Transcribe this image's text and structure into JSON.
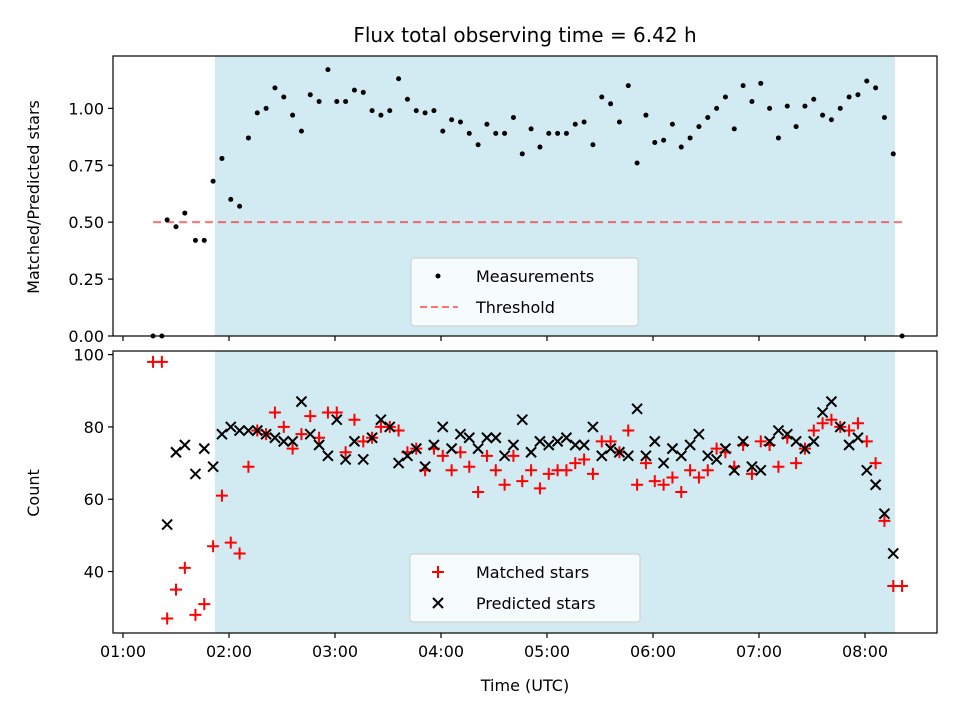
{
  "colors": {
    "shade": "#add8e6",
    "measurement": "#000000",
    "threshold": "#ff0000",
    "matched": "#ff0000",
    "predicted": "#000000"
  },
  "chart_data": [
    {
      "type": "scatter",
      "title": "Flux total observing time = 6.42 h",
      "xlabel": "",
      "ylabel": "Matched/Predicted stars",
      "ylim": [
        0.0,
        1.23
      ],
      "yticks": [
        "0.00",
        "0.25",
        "0.50",
        "0.75",
        "1.00"
      ],
      "shaded_region": {
        "x_start": "01:52",
        "x_end": "08:17"
      },
      "threshold": {
        "name": "Threshold",
        "value": 0.5,
        "x_start": "01:17",
        "x_end": "08:23"
      },
      "legend": {
        "placement": "lower center",
        "entries": [
          "Measurements",
          "Threshold"
        ]
      },
      "series": [
        {
          "name": "Measurements",
          "points": [
            [
              "01:17",
              0.0
            ],
            [
              "01:22",
              0.0
            ],
            [
              "01:25",
              0.51
            ],
            [
              "01:30",
              0.48
            ],
            [
              "01:35",
              0.54
            ],
            [
              "01:41",
              0.42
            ],
            [
              "01:46",
              0.42
            ],
            [
              "01:51",
              0.68
            ],
            [
              "01:56",
              0.78
            ],
            [
              "02:01",
              0.6
            ],
            [
              "02:06",
              0.57
            ],
            [
              "02:11",
              0.87
            ],
            [
              "02:16",
              0.98
            ],
            [
              "02:21",
              1.0
            ],
            [
              "02:26",
              1.09
            ],
            [
              "02:31",
              1.05
            ],
            [
              "02:36",
              0.97
            ],
            [
              "02:41",
              0.9
            ],
            [
              "02:46",
              1.06
            ],
            [
              "02:51",
              1.03
            ],
            [
              "02:56",
              1.17
            ],
            [
              "03:01",
              1.03
            ],
            [
              "03:06",
              1.03
            ],
            [
              "03:11",
              1.08
            ],
            [
              "03:16",
              1.07
            ],
            [
              "03:21",
              0.99
            ],
            [
              "03:26",
              0.97
            ],
            [
              "03:31",
              0.99
            ],
            [
              "03:36",
              1.13
            ],
            [
              "03:41",
              1.04
            ],
            [
              "03:46",
              0.99
            ],
            [
              "03:51",
              0.98
            ],
            [
              "03:56",
              0.99
            ],
            [
              "04:01",
              0.9
            ],
            [
              "04:06",
              0.95
            ],
            [
              "04:11",
              0.94
            ],
            [
              "04:16",
              0.89
            ],
            [
              "04:21",
              0.84
            ],
            [
              "04:26",
              0.93
            ],
            [
              "04:31",
              0.89
            ],
            [
              "04:36",
              0.89
            ],
            [
              "04:41",
              0.96
            ],
            [
              "04:46",
              0.8
            ],
            [
              "04:51",
              0.91
            ],
            [
              "04:56",
              0.83
            ],
            [
              "05:01",
              0.89
            ],
            [
              "05:06",
              0.89
            ],
            [
              "05:11",
              0.89
            ],
            [
              "05:16",
              0.93
            ],
            [
              "05:21",
              0.94
            ],
            [
              "05:26",
              0.84
            ],
            [
              "05:31",
              1.05
            ],
            [
              "05:36",
              1.02
            ],
            [
              "05:41",
              0.94
            ],
            [
              "05:46",
              1.1
            ],
            [
              "05:51",
              0.76
            ],
            [
              "05:56",
              0.97
            ],
            [
              "06:01",
              0.85
            ],
            [
              "06:06",
              0.86
            ],
            [
              "06:11",
              0.93
            ],
            [
              "06:16",
              0.83
            ],
            [
              "06:21",
              0.87
            ],
            [
              "06:26",
              0.92
            ],
            [
              "06:31",
              0.96
            ],
            [
              "06:36",
              1.0
            ],
            [
              "06:41",
              1.05
            ],
            [
              "06:46",
              0.91
            ],
            [
              "06:51",
              1.1
            ],
            [
              "06:56",
              1.03
            ],
            [
              "07:01",
              1.11
            ],
            [
              "07:06",
              1.0
            ],
            [
              "07:11",
              0.87
            ],
            [
              "07:16",
              1.01
            ],
            [
              "07:21",
              0.92
            ],
            [
              "07:26",
              1.01
            ],
            [
              "07:31",
              1.04
            ],
            [
              "07:36",
              0.97
            ],
            [
              "07:41",
              0.95
            ],
            [
              "07:46",
              1.0
            ],
            [
              "07:51",
              1.05
            ],
            [
              "07:56",
              1.06
            ],
            [
              "08:01",
              1.12
            ],
            [
              "08:06",
              1.09
            ],
            [
              "08:11",
              0.96
            ],
            [
              "08:16",
              0.8
            ],
            [
              "08:21",
              0.0
            ]
          ]
        }
      ]
    },
    {
      "type": "scatter",
      "title": "",
      "xlabel": "Time (UTC)",
      "ylabel": "Count",
      "ylim": [
        23,
        101
      ],
      "yticks": [
        "40",
        "60",
        "80",
        "100"
      ],
      "xticks": [
        "01:00",
        "02:00",
        "03:00",
        "04:00",
        "05:00",
        "06:00",
        "07:00",
        "08:00"
      ],
      "shaded_region": {
        "x_start": "01:52",
        "x_end": "08:17"
      },
      "legend": {
        "placement": "lower center",
        "entries": [
          "Matched stars",
          "Predicted stars"
        ]
      },
      "series": [
        {
          "name": "Matched stars",
          "points": [
            [
              "01:17",
              98
            ],
            [
              "01:22",
              98
            ],
            [
              "01:25",
              27
            ],
            [
              "01:30",
              35
            ],
            [
              "01:35",
              41
            ],
            [
              "01:41",
              28
            ],
            [
              "01:46",
              31
            ],
            [
              "01:51",
              47
            ],
            [
              "01:56",
              61
            ],
            [
              "02:01",
              48
            ],
            [
              "02:06",
              45
            ],
            [
              "02:11",
              69
            ],
            [
              "02:16",
              79
            ],
            [
              "02:21",
              78
            ],
            [
              "02:26",
              84
            ],
            [
              "02:31",
              80
            ],
            [
              "02:36",
              74
            ],
            [
              "02:41",
              78
            ],
            [
              "02:46",
              83
            ],
            [
              "02:51",
              77
            ],
            [
              "02:56",
              84
            ],
            [
              "03:01",
              84
            ],
            [
              "03:06",
              73
            ],
            [
              "03:11",
              82
            ],
            [
              "03:16",
              76
            ],
            [
              "03:21",
              77
            ],
            [
              "03:26",
              80
            ],
            [
              "03:31",
              80
            ],
            [
              "03:36",
              79
            ],
            [
              "03:41",
              73
            ],
            [
              "03:46",
              74
            ],
            [
              "03:51",
              68
            ],
            [
              "03:56",
              74
            ],
            [
              "04:01",
              72
            ],
            [
              "04:06",
              68
            ],
            [
              "04:11",
              73
            ],
            [
              "04:16",
              69
            ],
            [
              "04:21",
              62
            ],
            [
              "04:26",
              72
            ],
            [
              "04:31",
              68
            ],
            [
              "04:36",
              64
            ],
            [
              "04:41",
              72
            ],
            [
              "04:46",
              65
            ],
            [
              "04:51",
              68
            ],
            [
              "04:56",
              63
            ],
            [
              "05:01",
              67
            ],
            [
              "05:06",
              68
            ],
            [
              "05:11",
              68
            ],
            [
              "05:16",
              70
            ],
            [
              "05:21",
              71
            ],
            [
              "05:26",
              67
            ],
            [
              "05:31",
              76
            ],
            [
              "05:36",
              76
            ],
            [
              "05:41",
              73
            ],
            [
              "05:46",
              79
            ],
            [
              "05:51",
              64
            ],
            [
              "05:56",
              70
            ],
            [
              "06:01",
              65
            ],
            [
              "06:06",
              64
            ],
            [
              "06:11",
              66
            ],
            [
              "06:16",
              62
            ],
            [
              "06:21",
              68
            ],
            [
              "06:26",
              66
            ],
            [
              "06:31",
              68
            ],
            [
              "06:36",
              74
            ],
            [
              "06:41",
              73
            ],
            [
              "06:46",
              69
            ],
            [
              "06:51",
              75
            ],
            [
              "06:56",
              67
            ],
            [
              "07:01",
              76
            ],
            [
              "07:06",
              75
            ],
            [
              "07:11",
              69
            ],
            [
              "07:16",
              77
            ],
            [
              "07:21",
              70
            ],
            [
              "07:26",
              74
            ],
            [
              "07:31",
              79
            ],
            [
              "07:36",
              81
            ],
            [
              "07:41",
              82
            ],
            [
              "07:46",
              80
            ],
            [
              "07:51",
              79
            ],
            [
              "07:56",
              81
            ],
            [
              "08:01",
              76
            ],
            [
              "08:06",
              70
            ],
            [
              "08:11",
              54
            ],
            [
              "08:16",
              36
            ],
            [
              "08:21",
              36
            ]
          ]
        },
        {
          "name": "Predicted stars",
          "points": [
            [
              "01:25",
              53
            ],
            [
              "01:30",
              73
            ],
            [
              "01:35",
              75
            ],
            [
              "01:41",
              67
            ],
            [
              "01:46",
              74
            ],
            [
              "01:51",
              69
            ],
            [
              "01:56",
              78
            ],
            [
              "02:01",
              80
            ],
            [
              "02:06",
              79
            ],
            [
              "02:11",
              79
            ],
            [
              "02:16",
              79
            ],
            [
              "02:21",
              78
            ],
            [
              "02:26",
              77
            ],
            [
              "02:31",
              76
            ],
            [
              "02:36",
              76
            ],
            [
              "02:41",
              87
            ],
            [
              "02:46",
              78
            ],
            [
              "02:51",
              75
            ],
            [
              "02:56",
              72
            ],
            [
              "03:01",
              82
            ],
            [
              "03:06",
              71
            ],
            [
              "03:11",
              76
            ],
            [
              "03:16",
              71
            ],
            [
              "03:21",
              77
            ],
            [
              "03:26",
              82
            ],
            [
              "03:31",
              80
            ],
            [
              "03:36",
              70
            ],
            [
              "03:41",
              72
            ],
            [
              "03:46",
              74
            ],
            [
              "03:51",
              69
            ],
            [
              "03:56",
              75
            ],
            [
              "04:01",
              80
            ],
            [
              "04:06",
              74
            ],
            [
              "04:11",
              78
            ],
            [
              "04:16",
              77
            ],
            [
              "04:21",
              74
            ],
            [
              "04:26",
              77
            ],
            [
              "04:31",
              77
            ],
            [
              "04:36",
              72
            ],
            [
              "04:41",
              75
            ],
            [
              "04:46",
              82
            ],
            [
              "04:51",
              73
            ],
            [
              "04:56",
              76
            ],
            [
              "05:01",
              75
            ],
            [
              "05:06",
              76
            ],
            [
              "05:11",
              77
            ],
            [
              "05:16",
              75
            ],
            [
              "05:21",
              75
            ],
            [
              "05:26",
              80
            ],
            [
              "05:31",
              72
            ],
            [
              "05:36",
              74
            ],
            [
              "05:41",
              73
            ],
            [
              "05:46",
              72
            ],
            [
              "05:51",
              85
            ],
            [
              "05:56",
              72
            ],
            [
              "06:01",
              76
            ],
            [
              "06:06",
              70
            ],
            [
              "06:11",
              74
            ],
            [
              "06:16",
              72
            ],
            [
              "06:21",
              75
            ],
            [
              "06:26",
              78
            ],
            [
              "06:31",
              72
            ],
            [
              "06:36",
              71
            ],
            [
              "06:41",
              74
            ],
            [
              "06:46",
              68
            ],
            [
              "06:51",
              76
            ],
            [
              "06:56",
              69
            ],
            [
              "07:01",
              68
            ],
            [
              "07:06",
              76
            ],
            [
              "07:11",
              79
            ],
            [
              "07:16",
              78
            ],
            [
              "07:21",
              76
            ],
            [
              "07:26",
              74
            ],
            [
              "07:31",
              76
            ],
            [
              "07:36",
              84
            ],
            [
              "07:41",
              87
            ],
            [
              "07:46",
              80
            ],
            [
              "07:51",
              75
            ],
            [
              "07:56",
              77
            ],
            [
              "08:01",
              68
            ],
            [
              "08:06",
              64
            ],
            [
              "08:11",
              56
            ],
            [
              "08:16",
              45
            ]
          ]
        }
      ]
    }
  ]
}
